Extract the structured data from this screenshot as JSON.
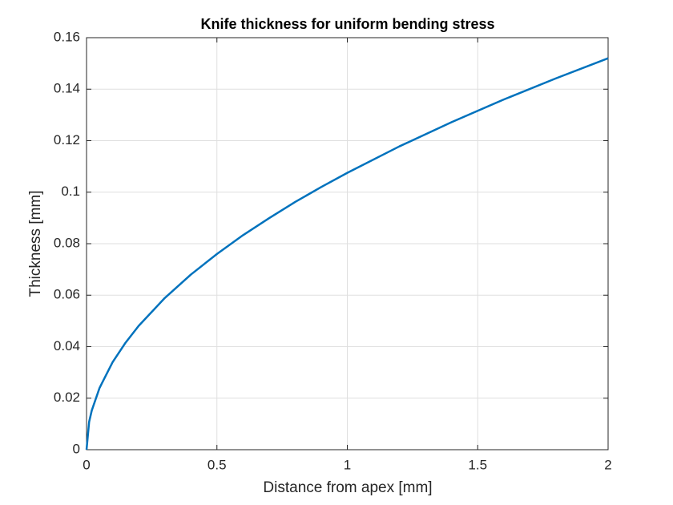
{
  "chart_data": {
    "type": "line",
    "title": "Knife thickness for uniform bending stress",
    "x_label": "Distance from apex [mm]",
    "y_label": "Thickness [mm]",
    "x": [
      0,
      0.01,
      0.02,
      0.05,
      0.1,
      0.15,
      0.2,
      0.3,
      0.4,
      0.5,
      0.6,
      0.7,
      0.8,
      0.9,
      1.0,
      1.2,
      1.4,
      1.6,
      1.8,
      2.0
    ],
    "series": [
      {
        "color": "#0072bd",
        "values": [
          0,
          0.0108,
          0.0152,
          0.024,
          0.034,
          0.0416,
          0.0481,
          0.0589,
          0.068,
          0.076,
          0.0833,
          0.0899,
          0.0962,
          0.102,
          0.1075,
          0.1178,
          0.1272,
          0.136,
          0.1442,
          0.152
        ]
      }
    ],
    "xlim": [
      0,
      2
    ],
    "xticks": [
      0,
      0.5,
      1,
      1.5,
      2
    ],
    "ylim": [
      0,
      0.16
    ],
    "yticks": [
      0,
      0.02,
      0.04,
      0.06,
      0.08,
      0.1,
      0.12,
      0.14,
      0.16
    ],
    "grid": true
  }
}
